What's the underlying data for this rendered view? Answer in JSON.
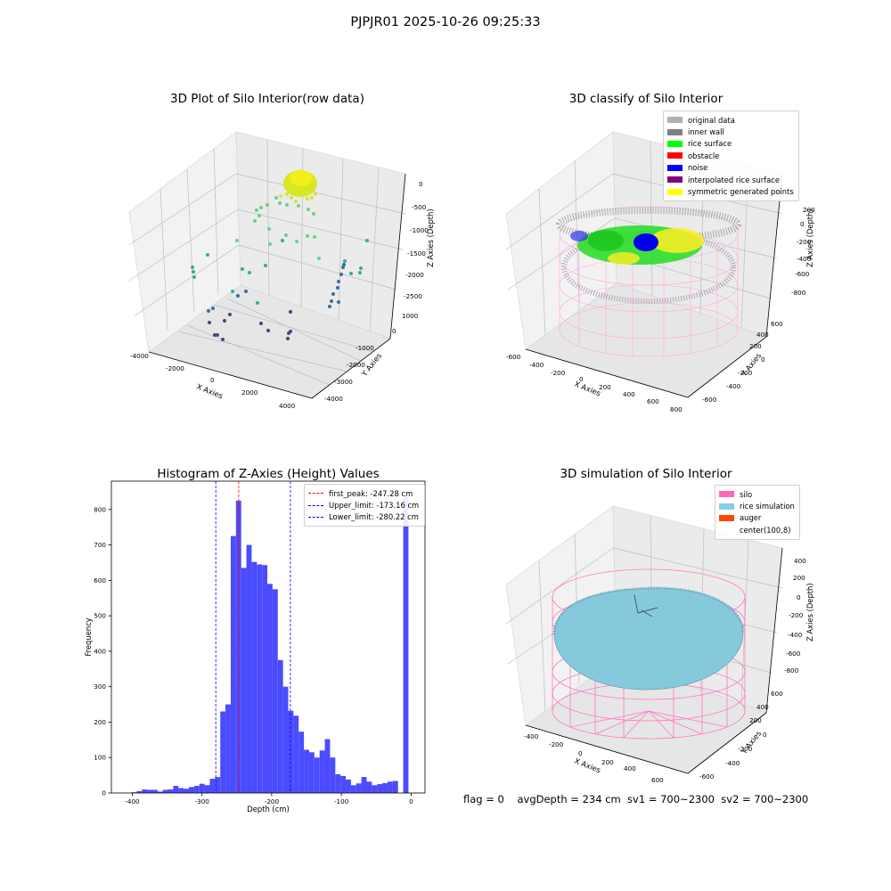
{
  "suptitle": "PJPJR01 2025-10-26 09:25:33",
  "footer": "flag = 0    avgDepth = 234 cm  sv1 = 700~2300  sv2 = 700~2300",
  "panel_raw": {
    "title": "3D Plot of Silo Interior(row data)",
    "xlabel": "X Axies",
    "ylabel": "Y Axies",
    "zlabel": "Z Axies (Depth)",
    "xticks": [
      "-4000",
      "-2000",
      "0",
      "2000",
      "4000"
    ],
    "yticks": [
      "-4000",
      "-3000",
      "-2000",
      "-1000",
      "0",
      "1000"
    ],
    "zticks": [
      "0",
      "-500",
      "-1000",
      "-1500",
      "-2000",
      "-2500"
    ]
  },
  "panel_classify": {
    "title": "3D classify of Silo Interior",
    "xlabel": "X Axies",
    "ylabel": "Y Axies",
    "zlabel": "Z Axies (Depth)",
    "xticks": [
      "-600",
      "-400",
      "-200",
      "0",
      "200",
      "400",
      "600",
      "800"
    ],
    "yticks": [
      "-600",
      "-400",
      "-200",
      "0",
      "200",
      "400",
      "600"
    ],
    "zticks": [
      "200",
      "0",
      "-200",
      "-400",
      "-600",
      "-800"
    ],
    "legend": [
      {
        "label": "original data",
        "color": "#b0b0b0"
      },
      {
        "label": "inner wall",
        "color": "#808080"
      },
      {
        "label": "rice surface",
        "color": "#00ff00"
      },
      {
        "label": "obstacle",
        "color": "#ff0000"
      },
      {
        "label": "noise",
        "color": "#0000ff"
      },
      {
        "label": "interpolated rice surface",
        "color": "#800080"
      },
      {
        "label": "symmetric generated points",
        "color": "#ffff00"
      }
    ]
  },
  "panel_sim": {
    "title": "3D simulation of Silo Interior",
    "xlabel": "X Axies",
    "ylabel": "Y Axies",
    "zlabel": "Z Axies (Depth)",
    "xticks": [
      "-400",
      "-200",
      "0",
      "200",
      "400",
      "600"
    ],
    "yticks": [
      "-600",
      "-400",
      "-200",
      "0",
      "200",
      "400",
      "600"
    ],
    "zticks": [
      "400",
      "200",
      "0",
      "-200",
      "-400",
      "-600",
      "-800"
    ],
    "legend": [
      {
        "label": "silo",
        "color": "#ff69b4"
      },
      {
        "label": "rice simulation",
        "color": "#87ceeb"
      },
      {
        "label": "auger",
        "color": "#ff4500"
      },
      {
        "label": "center(100,8)",
        "color": ""
      }
    ]
  },
  "chart_data": {
    "type": "bar",
    "title": "Histogram of Z-Axies (Height) Values",
    "xlabel": "Depth (cm)",
    "ylabel": "Frequency",
    "xlim": [
      -430,
      20
    ],
    "ylim": [
      0,
      880
    ],
    "xticks": [
      -400,
      -300,
      -200,
      -100,
      0
    ],
    "yticks": [
      0,
      100,
      200,
      300,
      400,
      500,
      600,
      700,
      800
    ],
    "bar_color": "#4b4bff",
    "bin_width": 7.5,
    "bins": [
      [
        -397.5,
        2
      ],
      [
        -390,
        5
      ],
      [
        -382.5,
        10
      ],
      [
        -375,
        9
      ],
      [
        -367.5,
        9
      ],
      [
        -360,
        4
      ],
      [
        -352.5,
        9
      ],
      [
        -345,
        10
      ],
      [
        -337.5,
        20
      ],
      [
        -330,
        14
      ],
      [
        -322.5,
        12
      ],
      [
        -315,
        17
      ],
      [
        -307.5,
        20
      ],
      [
        -300,
        26
      ],
      [
        -292.5,
        22
      ],
      [
        -285,
        40
      ],
      [
        -277.5,
        45
      ],
      [
        -270,
        230
      ],
      [
        -262.5,
        250
      ],
      [
        -255,
        725
      ],
      [
        -247.5,
        825
      ],
      [
        -240,
        635
      ],
      [
        -232.5,
        700
      ],
      [
        -225,
        652
      ],
      [
        -217.5,
        645
      ],
      [
        -210,
        643
      ],
      [
        -202.5,
        590
      ],
      [
        -195,
        575
      ],
      [
        -187.5,
        375
      ],
      [
        -180,
        300
      ],
      [
        -172.5,
        232
      ],
      [
        -165,
        218
      ],
      [
        -157.5,
        173
      ],
      [
        -150,
        122
      ],
      [
        -142.5,
        115
      ],
      [
        -135,
        100
      ],
      [
        -127.5,
        120
      ],
      [
        -120,
        152
      ],
      [
        -112.5,
        100
      ],
      [
        -105,
        53
      ],
      [
        -97.5,
        48
      ],
      [
        -90,
        38
      ],
      [
        -82.5,
        22
      ],
      [
        -75,
        27
      ],
      [
        -67.5,
        45
      ],
      [
        -60,
        32
      ],
      [
        -52.5,
        22
      ],
      [
        -45,
        25
      ],
      [
        -37.5,
        28
      ],
      [
        -30,
        32
      ],
      [
        -22.5,
        34
      ],
      [
        -7.5,
        835
      ]
    ],
    "vlines": [
      {
        "label": "first_peak: -247.28 cm",
        "x": -247.28,
        "color": "#ff0000"
      },
      {
        "label": "Upper_limit: -173.16 cm",
        "x": -173.16,
        "color": "#0000ff"
      },
      {
        "label": "Lower_limit: -280.22 cm",
        "x": -280.22,
        "color": "#0000ff"
      }
    ]
  }
}
